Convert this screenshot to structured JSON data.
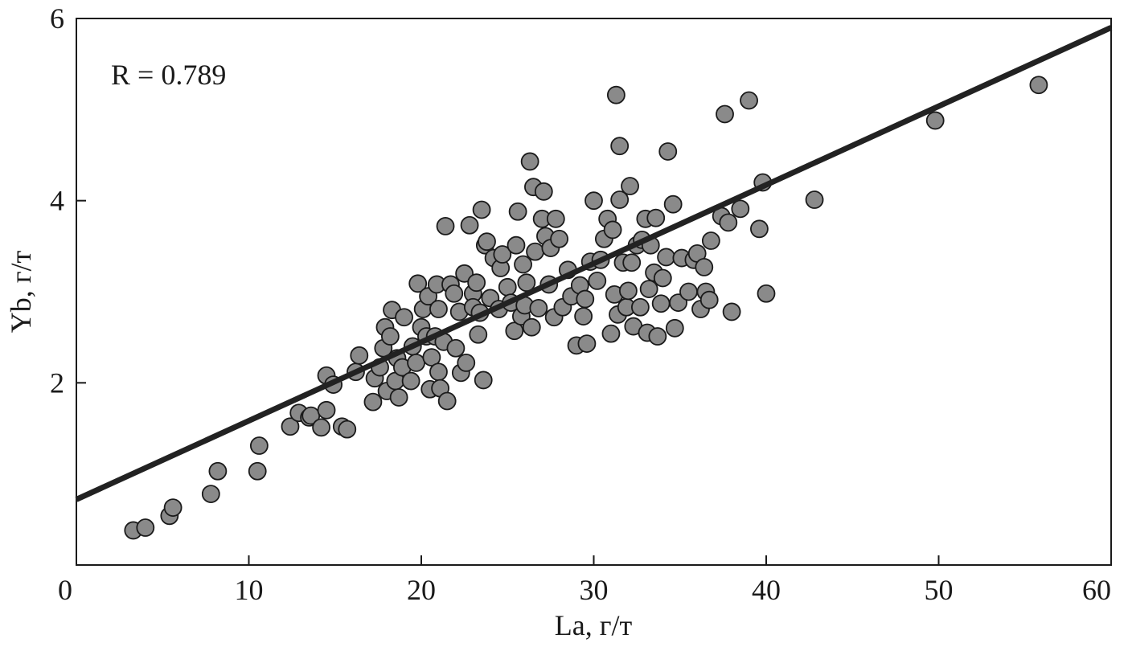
{
  "chart_data": {
    "type": "scatter",
    "title": "",
    "xlabel": "La, г/т",
    "ylabel": "Yb, г/т",
    "xlim": [
      0,
      60
    ],
    "ylim": [
      0,
      6
    ],
    "xticks": [
      0,
      10,
      20,
      30,
      40,
      50,
      60
    ],
    "yticks": [
      2,
      4,
      6
    ],
    "grid": false,
    "annotation": "R = 0.789",
    "colors": {
      "marker_fill": "#8a8a8a",
      "marker_stroke": "#1a1a1a",
      "line": "#222222",
      "axis": "#1a1a1a"
    },
    "regression_line": {
      "x": [
        0,
        60
      ],
      "y": [
        0.72,
        5.9
      ]
    },
    "points": [
      [
        3.3,
        0.38
      ],
      [
        4.0,
        0.41
      ],
      [
        5.4,
        0.54
      ],
      [
        5.6,
        0.63
      ],
      [
        7.8,
        0.78
      ],
      [
        8.2,
        1.03
      ],
      [
        10.5,
        1.03
      ],
      [
        10.6,
        1.31
      ],
      [
        12.4,
        1.52
      ],
      [
        12.9,
        1.67
      ],
      [
        13.5,
        1.62
      ],
      [
        13.6,
        1.64
      ],
      [
        14.2,
        1.51
      ],
      [
        14.5,
        1.7
      ],
      [
        14.5,
        2.08
      ],
      [
        14.9,
        1.98
      ],
      [
        15.4,
        1.52
      ],
      [
        15.7,
        1.49
      ],
      [
        16.2,
        2.12
      ],
      [
        16.4,
        2.3
      ],
      [
        17.2,
        1.79
      ],
      [
        17.3,
        2.05
      ],
      [
        17.6,
        2.17
      ],
      [
        17.8,
        2.38
      ],
      [
        17.9,
        2.61
      ],
      [
        18.0,
        1.91
      ],
      [
        18.2,
        2.51
      ],
      [
        18.3,
        2.8
      ],
      [
        18.5,
        2.02
      ],
      [
        18.6,
        2.27
      ],
      [
        18.7,
        1.84
      ],
      [
        18.9,
        2.17
      ],
      [
        19.0,
        2.72
      ],
      [
        19.4,
        2.02
      ],
      [
        19.5,
        2.4
      ],
      [
        19.7,
        2.22
      ],
      [
        19.8,
        3.09
      ],
      [
        20.0,
        2.61
      ],
      [
        20.1,
        2.81
      ],
      [
        20.3,
        2.51
      ],
      [
        20.4,
        2.95
      ],
      [
        20.5,
        1.93
      ],
      [
        20.6,
        2.28
      ],
      [
        20.8,
        2.51
      ],
      [
        20.9,
        3.08
      ],
      [
        21.0,
        2.12
      ],
      [
        21.0,
        2.81
      ],
      [
        21.1,
        1.94
      ],
      [
        21.3,
        2.45
      ],
      [
        21.4,
        3.72
      ],
      [
        21.5,
        1.8
      ],
      [
        21.7,
        3.08
      ],
      [
        21.9,
        2.98
      ],
      [
        22.0,
        2.38
      ],
      [
        22.2,
        2.78
      ],
      [
        22.3,
        2.11
      ],
      [
        22.5,
        3.2
      ],
      [
        22.6,
        2.22
      ],
      [
        22.8,
        3.73
      ],
      [
        23.0,
        2.98
      ],
      [
        23.0,
        2.83
      ],
      [
        23.2,
        3.1
      ],
      [
        23.3,
        2.53
      ],
      [
        23.4,
        2.77
      ],
      [
        23.5,
        3.9
      ],
      [
        23.6,
        2.03
      ],
      [
        23.7,
        3.51
      ],
      [
        23.8,
        3.55
      ],
      [
        24.0,
        2.93
      ],
      [
        24.2,
        3.37
      ],
      [
        24.5,
        2.81
      ],
      [
        24.6,
        3.26
      ],
      [
        24.7,
        3.41
      ],
      [
        25.0,
        3.05
      ],
      [
        25.2,
        2.88
      ],
      [
        25.4,
        2.57
      ],
      [
        25.5,
        3.51
      ],
      [
        25.6,
        3.88
      ],
      [
        25.8,
        2.73
      ],
      [
        25.9,
        3.3
      ],
      [
        26.0,
        2.85
      ],
      [
        26.1,
        3.1
      ],
      [
        26.3,
        4.43
      ],
      [
        26.4,
        2.61
      ],
      [
        26.5,
        4.15
      ],
      [
        26.6,
        3.44
      ],
      [
        26.8,
        2.82
      ],
      [
        27.0,
        3.8
      ],
      [
        27.1,
        4.1
      ],
      [
        27.2,
        3.61
      ],
      [
        27.4,
        3.08
      ],
      [
        27.5,
        3.48
      ],
      [
        27.7,
        2.72
      ],
      [
        27.8,
        3.8
      ],
      [
        28.0,
        3.58
      ],
      [
        28.2,
        2.83
      ],
      [
        28.5,
        3.24
      ],
      [
        28.7,
        2.95
      ],
      [
        29.0,
        2.41
      ],
      [
        29.2,
        3.07
      ],
      [
        29.4,
        2.73
      ],
      [
        29.5,
        2.92
      ],
      [
        29.6,
        2.43
      ],
      [
        29.8,
        3.33
      ],
      [
        30.0,
        4.0
      ],
      [
        30.2,
        3.12
      ],
      [
        30.4,
        3.35
      ],
      [
        30.6,
        3.58
      ],
      [
        30.8,
        3.8
      ],
      [
        31.0,
        2.54
      ],
      [
        31.1,
        3.68
      ],
      [
        31.2,
        2.97
      ],
      [
        31.3,
        5.16
      ],
      [
        31.4,
        2.75
      ],
      [
        31.5,
        4.6
      ],
      [
        31.5,
        4.01
      ],
      [
        31.7,
        3.32
      ],
      [
        31.9,
        2.83
      ],
      [
        32.0,
        3.01
      ],
      [
        32.1,
        4.16
      ],
      [
        32.2,
        3.32
      ],
      [
        32.3,
        2.62
      ],
      [
        32.5,
        3.51
      ],
      [
        32.7,
        2.83
      ],
      [
        32.8,
        3.57
      ],
      [
        33.0,
        3.8
      ],
      [
        33.1,
        2.55
      ],
      [
        33.2,
        3.03
      ],
      [
        33.3,
        3.51
      ],
      [
        33.5,
        3.21
      ],
      [
        33.6,
        3.81
      ],
      [
        33.7,
        2.51
      ],
      [
        33.9,
        2.87
      ],
      [
        34.0,
        3.15
      ],
      [
        34.2,
        3.38
      ],
      [
        34.3,
        4.54
      ],
      [
        34.6,
        3.96
      ],
      [
        34.7,
        2.6
      ],
      [
        34.9,
        2.88
      ],
      [
        35.1,
        3.37
      ],
      [
        35.5,
        3.0
      ],
      [
        35.8,
        3.35
      ],
      [
        36.0,
        3.42
      ],
      [
        36.2,
        2.81
      ],
      [
        36.4,
        3.27
      ],
      [
        36.5,
        3.0
      ],
      [
        36.7,
        2.91
      ],
      [
        36.8,
        3.56
      ],
      [
        37.4,
        3.83
      ],
      [
        37.6,
        4.95
      ],
      [
        37.8,
        3.76
      ],
      [
        38.0,
        2.78
      ],
      [
        38.5,
        3.91
      ],
      [
        39.0,
        5.1
      ],
      [
        39.6,
        3.69
      ],
      [
        39.8,
        4.2
      ],
      [
        40.0,
        2.98
      ],
      [
        42.8,
        4.01
      ],
      [
        49.8,
        4.88
      ],
      [
        55.8,
        5.27
      ]
    ]
  }
}
